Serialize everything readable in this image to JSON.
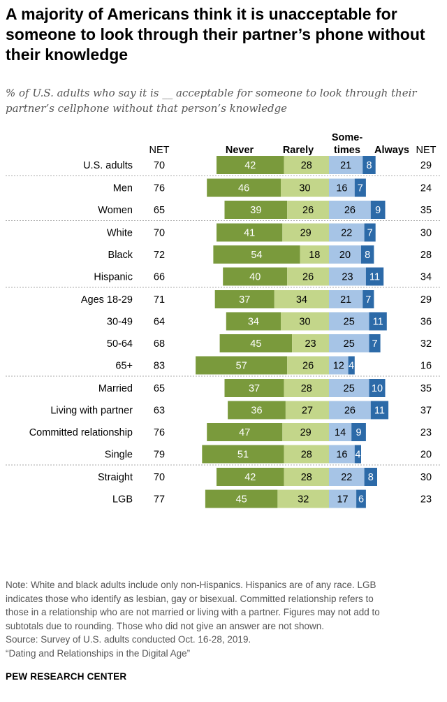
{
  "title": "A majority of Americans think it is unacceptable for someone to look through their partner’s phone without their knowledge",
  "subtitle": "% of U.S. adults who say it is __ acceptable for someone to look through their partner’s cellphone without that person’s knowledge",
  "note_lines": [
    "Note: White and black adults include only non-Hispanics. Hispanics are of any race. LGB",
    "indicates those who identify as lesbian, gay or bisexual. Committed relationship refers to",
    "those in a relationship who are not married or living with a partner. Figures may not add to",
    "subtotals due to rounding. Those who did not give an answer are not shown.",
    "Source: Survey of U.S. adults conducted Oct. 16-28, 2019.",
    "“Dating and Relationships in the Digital Age”"
  ],
  "org": "PEW RESEARCH CENTER",
  "colors": {
    "never": "#7a9a3c",
    "rarely": "#c3d68a",
    "sometimes": "#a6c4e6",
    "always": "#2c6aa8",
    "divider": "#aaaaaa"
  },
  "chart_data": {
    "type": "bar",
    "orientation": "horizontal",
    "stacked": "diverging",
    "headers": {
      "net_left": "NET",
      "never": "Never",
      "rarely": "Rarely",
      "sometimes_line1": "Some-",
      "sometimes_line2": "times",
      "always": "Always",
      "net_right": "NET"
    },
    "series": [
      {
        "name": "Never",
        "key": "never"
      },
      {
        "name": "Rarely",
        "key": "rarely"
      },
      {
        "name": "Some-times",
        "key": "sometimes"
      },
      {
        "name": "Always",
        "key": "always"
      }
    ],
    "groups": [
      {
        "rows": [
          {
            "label": "U.S. adults",
            "net_left": 70,
            "never": 42,
            "rarely": 28,
            "sometimes": 21,
            "always": 8,
            "net_right": 29
          }
        ]
      },
      {
        "rows": [
          {
            "label": "Men",
            "net_left": 76,
            "never": 46,
            "rarely": 30,
            "sometimes": 16,
            "always": 7,
            "net_right": 24
          },
          {
            "label": "Women",
            "net_left": 65,
            "never": 39,
            "rarely": 26,
            "sometimes": 26,
            "always": 9,
            "net_right": 35
          }
        ]
      },
      {
        "rows": [
          {
            "label": "White",
            "net_left": 70,
            "never": 41,
            "rarely": 29,
            "sometimes": 22,
            "always": 7,
            "net_right": 30
          },
          {
            "label": "Black",
            "net_left": 72,
            "never": 54,
            "rarely": 18,
            "sometimes": 20,
            "always": 8,
            "net_right": 28
          },
          {
            "label": "Hispanic",
            "net_left": 66,
            "never": 40,
            "rarely": 26,
            "sometimes": 23,
            "always": 11,
            "net_right": 34
          }
        ]
      },
      {
        "rows": [
          {
            "label": "Ages 18-29",
            "net_left": 71,
            "never": 37,
            "rarely": 34,
            "sometimes": 21,
            "always": 7,
            "net_right": 29
          },
          {
            "label": "30-49",
            "net_left": 64,
            "never": 34,
            "rarely": 30,
            "sometimes": 25,
            "always": 11,
            "net_right": 36
          },
          {
            "label": "50-64",
            "net_left": 68,
            "never": 45,
            "rarely": 23,
            "sometimes": 25,
            "always": 7,
            "net_right": 32
          },
          {
            "label": "65+",
            "net_left": 83,
            "never": 57,
            "rarely": 26,
            "sometimes": 12,
            "always": 4,
            "net_right": 16
          }
        ]
      },
      {
        "rows": [
          {
            "label": "Married",
            "net_left": 65,
            "never": 37,
            "rarely": 28,
            "sometimes": 25,
            "always": 10,
            "net_right": 35
          },
          {
            "label": "Living with partner",
            "net_left": 63,
            "never": 36,
            "rarely": 27,
            "sometimes": 26,
            "always": 11,
            "net_right": 37
          },
          {
            "label": "Committed relationship",
            "net_left": 76,
            "never": 47,
            "rarely": 29,
            "sometimes": 14,
            "always": 9,
            "net_right": 23
          },
          {
            "label": "Single",
            "net_left": 79,
            "never": 51,
            "rarely": 28,
            "sometimes": 16,
            "always": 4,
            "net_right": 20
          }
        ]
      },
      {
        "rows": [
          {
            "label": "Straight",
            "net_left": 70,
            "never": 42,
            "rarely": 28,
            "sometimes": 22,
            "always": 8,
            "net_right": 30
          },
          {
            "label": "LGB",
            "net_left": 77,
            "never": 45,
            "rarely": 32,
            "sometimes": 17,
            "always": 6,
            "net_right": 23
          }
        ]
      }
    ]
  }
}
